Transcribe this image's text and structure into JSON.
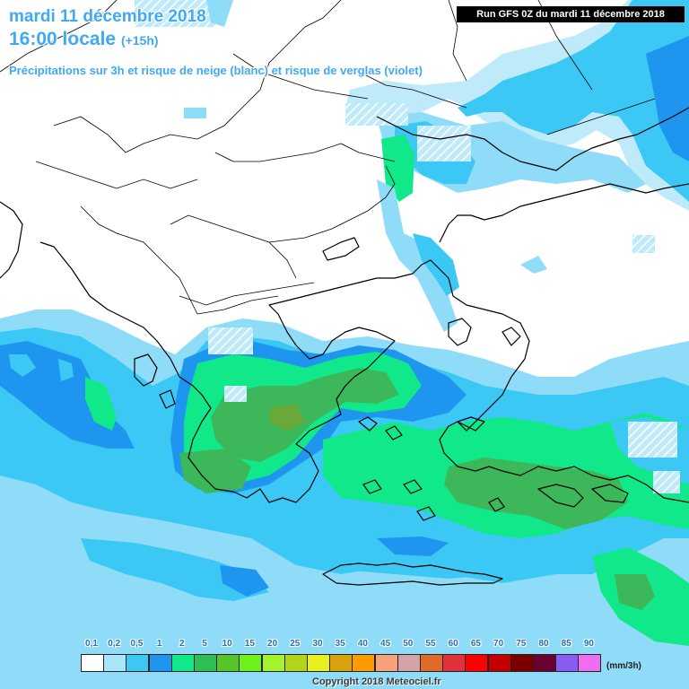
{
  "header": {
    "date_line": "mardi 11 décembre 2018",
    "time_line": "16:00 locale",
    "time_offset": "(+15h)",
    "subtitle": "Précipitations sur 3h et risque de neige (blanc) et risque de verglas (violet)",
    "run_info": "Run GFS 0Z du mardi 11 décembre 2018"
  },
  "legend": {
    "unit": "(mm/3h)",
    "items": [
      {
        "label": "0,1",
        "color": "#ffffff"
      },
      {
        "label": "0,2",
        "color": "#a8e6fb"
      },
      {
        "label": "0,5",
        "color": "#3cc8f5"
      },
      {
        "label": "1",
        "color": "#1e96f0"
      },
      {
        "label": "2",
        "color": "#11e88a"
      },
      {
        "label": "5",
        "color": "#2fbd56"
      },
      {
        "label": "10",
        "color": "#57c42a"
      },
      {
        "label": "15",
        "color": "#6df21c"
      },
      {
        "label": "20",
        "color": "#a6f22e"
      },
      {
        "label": "25",
        "color": "#b3d41a"
      },
      {
        "label": "30",
        "color": "#e7f01e"
      },
      {
        "label": "35",
        "color": "#d9a30f"
      },
      {
        "label": "40",
        "color": "#ff9a00"
      },
      {
        "label": "45",
        "color": "#f7a27a"
      },
      {
        "label": "50",
        "color": "#d3a3a8"
      },
      {
        "label": "55",
        "color": "#e06a2a"
      },
      {
        "label": "60",
        "color": "#e0323a"
      },
      {
        "label": "65",
        "color": "#ff0000"
      },
      {
        "label": "70",
        "color": "#c30000"
      },
      {
        "label": "75",
        "color": "#7a0000"
      },
      {
        "label": "80",
        "color": "#6a0030"
      },
      {
        "label": "85",
        "color": "#8a5cf0"
      },
      {
        "label": "90",
        "color": "#f06cf0"
      }
    ]
  },
  "copyright": "Copyright 2018 Meteociel.fr",
  "colors": {
    "light_blue": "#8fdcf8",
    "cyan_blue": "#2ec4f2",
    "mid_blue": "#1e96f0",
    "light_green": "#11e88a",
    "dark_green": "#3cb85a",
    "olive": "#6aa83a",
    "snow_hatch": "#ffffff"
  }
}
